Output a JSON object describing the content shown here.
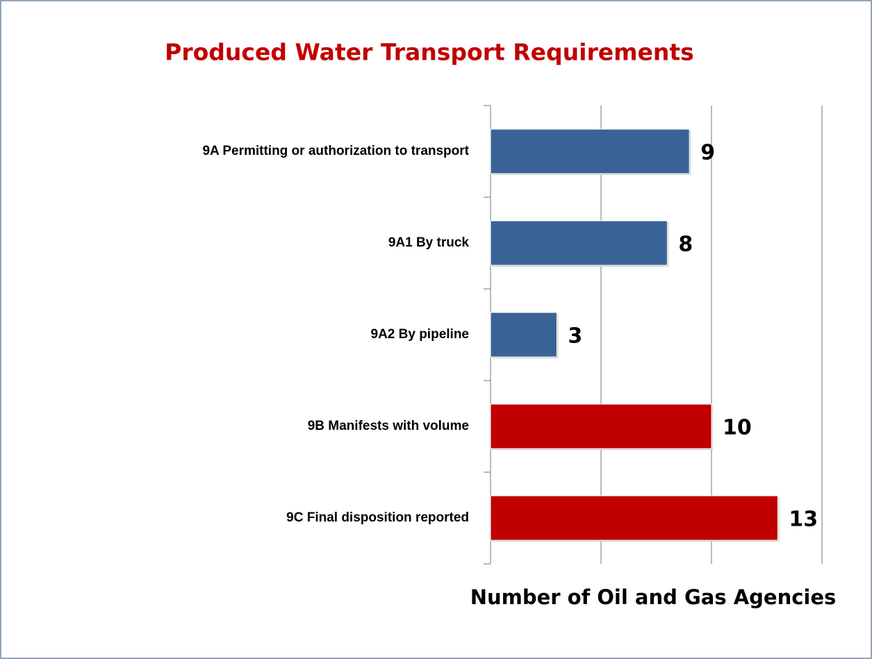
{
  "chart_data": {
    "type": "hbar",
    "title": "Produced Water Transport Requirements",
    "x_label": "Number of Oil and Gas Agencies",
    "categories": [
      "9A Permitting or authorization to transport",
      "9A1 By truck",
      "9A2 By pipeline",
      "9B Manifests with volume",
      "9C Final disposition reported"
    ],
    "values": [
      9,
      8,
      3,
      10,
      13
    ],
    "colors": [
      "#3a6395",
      "#3a6395",
      "#3a6395",
      "#c00000",
      "#c00000"
    ],
    "xlim": [
      0,
      15
    ],
    "xticks": [
      0,
      5,
      10,
      15
    ],
    "grid": true
  }
}
